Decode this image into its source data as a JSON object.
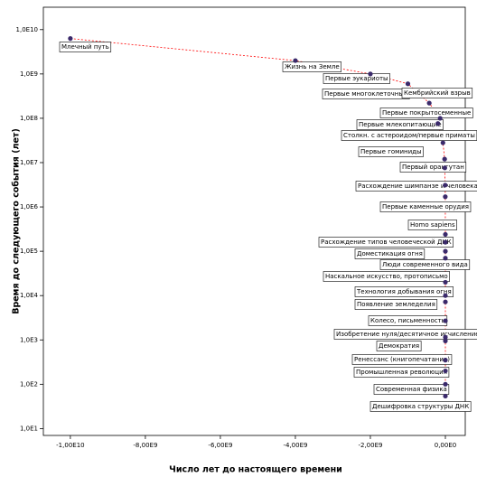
{
  "chart_data": {
    "type": "scatter",
    "x_label": "Число лет до настоящего времени",
    "y_label": "Время до следующего события (лет)",
    "log_y": true,
    "color": "#3b2a6b",
    "line_color": "#ff0000",
    "xlim": [
      -10720000000.0,
      530000000.0
    ],
    "ylim": [
      7,
      32000000000.0
    ],
    "xticks": [
      {
        "value": -10000000000.0,
        "label": "-1,00E10"
      },
      {
        "value": -8000000000.0,
        "label": "-8,00E9"
      },
      {
        "value": -6000000000.0,
        "label": "-6,00E9"
      },
      {
        "value": -4000000000.0,
        "label": "-4,00E9"
      },
      {
        "value": -2000000000.0,
        "label": "-2,00E9"
      },
      {
        "value": 0,
        "label": "0,00E0"
      }
    ],
    "yticks": [
      {
        "value": 10,
        "label": "1,0E1"
      },
      {
        "value": 100,
        "label": "1,0E2"
      },
      {
        "value": 1000,
        "label": "1,0E3"
      },
      {
        "value": 10000,
        "label": "1,0E4"
      },
      {
        "value": 100000,
        "label": "1,0E5"
      },
      {
        "value": 1000000,
        "label": "1,0E6"
      },
      {
        "value": 10000000,
        "label": "1,0E7"
      },
      {
        "value": 100000000,
        "label": "1,0E8"
      },
      {
        "value": 1000000000,
        "label": "1,0E9"
      },
      {
        "value": 10000000000,
        "label": "1,0E10"
      }
    ],
    "labels": [
      "Млечный путь",
      "Жизнь на Земле",
      "Первые эукариоты",
      "Первые многоклеточные",
      "Кембрийский взрыв",
      "Первые покрытосеменные",
      "Первые млекопитающие",
      "Столкн. с астероидом/первые приматы",
      "Первые гоминиды",
      "Первый орангутан",
      "Расхождение шимпанзе и человека",
      "Первые каменные орудия",
      "Homo sapiens",
      "Расхождение типов человеческой ДНК",
      "Доместикация огня",
      "Люди современного вида",
      "Наскальное искусство, протописьмо",
      "Технология добывания огня",
      "Появление земледелия",
      "Колесо, письменность",
      "Изобретение нуля/десятичное исчисление",
      "Демократия",
      "Ренессанс (книгопечатание)",
      "Промышленная революция",
      "Современная физика",
      "Дешифровка структуры ДНК"
    ],
    "x": [
      -10000000000.0,
      -4000000000.0,
      -2000000000.0,
      -1000000000.0,
      -430000000.0,
      -140000000.0,
      -200000000.0,
      -65000000.0,
      -20000000.0,
      -15000000.0,
      -5000000.0,
      -2500000.0,
      -200000.0,
      -150000.0,
      -100000.0,
      -50000.0,
      -30000.0,
      -10000.0,
      -8000.0,
      -5000.0,
      -2000.0,
      -1500.0,
      -600,
      -300,
      -100,
      -50
    ],
    "values": [
      6300000000.0,
      2000000000.0,
      1000000000.0,
      600000000.0,
      220000000.0,
      100000000.0,
      76000000.0,
      28000000.0,
      12000000.0,
      7600000.0,
      3100000.0,
      1700000.0,
      240000.0,
      160000.0,
      100000.0,
      70000.0,
      20000.0,
      10000.0,
      7200.0,
      2700.0,
      1150,
      950,
      350,
      200,
      100,
      54
    ]
  }
}
